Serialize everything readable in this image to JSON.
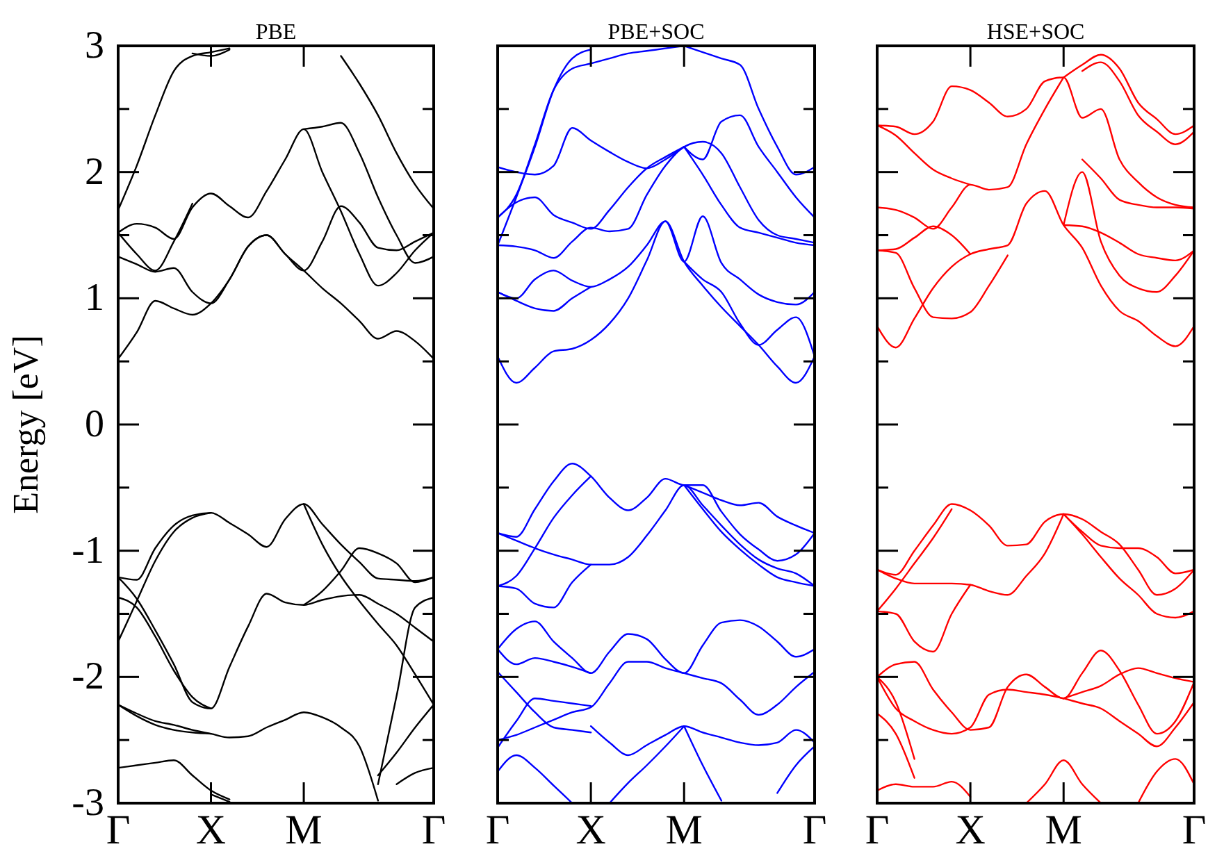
{
  "chart_data": [
    {
      "type": "line",
      "title": "PBE",
      "ylabel": "Energy [eV]",
      "ylim": [
        -3,
        3
      ],
      "categories": [
        "Γ",
        null,
        null,
        null,
        null,
        "X",
        null,
        null,
        null,
        null,
        "M",
        null,
        null,
        null,
        null,
        null,
        null,
        "Γ"
      ],
      "yticks": [
        -3,
        {
          "value": -2.5,
          "label": null
        },
        -2,
        {
          "value": -1.5,
          "label": null
        },
        -1,
        {
          "value": -0.5,
          "label": null
        },
        0,
        {
          "value": 0.5,
          "label": null
        },
        1,
        {
          "value": 1.5,
          "label": null
        },
        2,
        {
          "value": 2.5,
          "label": null
        },
        3
      ],
      "series": [
        {
          "color": "#000000",
          "values": [
            0.52,
            0.73,
            0.98,
            0.92,
            0.87,
            0.96,
            1.15,
            1.41,
            1.5,
            1.35,
            1.22,
            1.08,
            0.96,
            0.82,
            0.68,
            0.74,
            0.66,
            0.52
          ]
        },
        {
          "color": "#000000",
          "values": [
            1.33,
            1.27,
            1.21,
            1.24,
            1.05,
            0.96,
            1.15,
            1.41,
            1.5,
            1.35,
            1.22,
            1.45,
            1.73,
            1.6,
            1.4,
            1.38,
            1.45,
            1.52
          ]
        },
        {
          "color": "#000000",
          "values": [
            1.52,
            1.59,
            1.56,
            1.47,
            1.72,
            1.83,
            1.73,
            1.64,
            1.85,
            2.1,
            2.34,
            2.0,
            1.69,
            1.35,
            1.1,
            1.2,
            1.38,
            1.52
          ]
        },
        {
          "color": "#000000",
          "values": [
            null,
            null,
            null,
            null,
            null,
            null,
            null,
            null,
            null,
            null,
            2.34,
            2.36,
            2.39,
            2.15,
            1.8,
            1.5,
            1.28,
            1.33
          ]
        },
        {
          "color": "#000000",
          "values": [
            1.52,
            1.35,
            1.22,
            1.45,
            1.75,
            null,
            null,
            null,
            null,
            null,
            null,
            null,
            null,
            null,
            null,
            null,
            null,
            null
          ]
        },
        {
          "color": "#000000",
          "values": [
            1.7,
            2.05,
            2.45,
            2.8,
            2.92,
            2.95,
            2.98,
            null,
            null,
            null,
            null,
            null,
            null,
            null,
            null,
            null,
            null,
            null
          ]
        },
        {
          "color": "#000000",
          "values": [
            null,
            null,
            null,
            null,
            2.94,
            2.92,
            2.97,
            null,
            null,
            null,
            null,
            null,
            null,
            null,
            null,
            null,
            null,
            null
          ]
        },
        {
          "color": "#000000",
          "values": [
            null,
            null,
            null,
            null,
            null,
            null,
            null,
            null,
            null,
            null,
            null,
            null,
            2.92,
            2.7,
            2.45,
            2.15,
            1.9,
            1.71
          ]
        },
        {
          "color": "#000000",
          "values": [
            -1.21,
            -1.23,
            -0.98,
            -0.8,
            -0.72,
            -0.7,
            -0.78,
            -0.87,
            -0.97,
            -0.75,
            -0.63,
            -0.79,
            -0.95,
            -1.09,
            -1.22,
            -1.23,
            -1.24,
            -1.21
          ]
        },
        {
          "color": "#000000",
          "values": [
            -1.21,
            -1.38,
            -1.63,
            -1.9,
            -2.2,
            -2.25,
            -1.92,
            -1.6,
            -1.34,
            -1.41,
            -1.43,
            -1.39,
            -1.36,
            -1.35,
            -1.42,
            -1.5,
            -1.61,
            -1.72
          ]
        },
        {
          "color": "#000000",
          "values": [
            -1.37,
            -1.45,
            -1.68,
            -1.95,
            -2.16,
            -2.25,
            null,
            null,
            null,
            null,
            null,
            null,
            null,
            null,
            null,
            null,
            null,
            null
          ]
        },
        {
          "color": "#000000",
          "values": [
            -1.72,
            -1.4,
            -1.08,
            -0.85,
            -0.74,
            -0.7,
            null,
            null,
            null,
            null,
            null,
            null,
            null,
            null,
            null,
            null,
            null,
            null
          ]
        },
        {
          "color": "#000000",
          "values": [
            null,
            null,
            null,
            null,
            null,
            null,
            null,
            null,
            null,
            null,
            -0.63,
            -0.95,
            -1.2,
            -1.4,
            -1.58,
            -1.75,
            -1.98,
            -2.22
          ]
        },
        {
          "color": "#000000",
          "values": [
            null,
            null,
            null,
            null,
            null,
            null,
            null,
            null,
            null,
            null,
            -1.43,
            -1.32,
            -1.16,
            -0.98,
            -1.02,
            -1.1,
            -1.25,
            -1.21
          ]
        },
        {
          "color": "#000000",
          "values": [
            null,
            null,
            null,
            null,
            null,
            null,
            null,
            null,
            null,
            null,
            null,
            null,
            null,
            null,
            -2.85,
            -2.15,
            -1.45,
            -1.37
          ]
        },
        {
          "color": "#000000",
          "values": [
            -2.22,
            -2.29,
            -2.35,
            -2.38,
            -2.42,
            -2.45,
            -2.48,
            -2.47,
            -2.4,
            -2.34,
            -2.28,
            -2.32,
            -2.4,
            -2.55,
            -2.98,
            null,
            null,
            null
          ]
        },
        {
          "color": "#000000",
          "values": [
            null,
            null,
            null,
            null,
            null,
            null,
            null,
            null,
            null,
            null,
            null,
            null,
            null,
            null,
            -2.78,
            -2.6,
            -2.4,
            -2.22
          ]
        },
        {
          "color": "#000000",
          "values": [
            -2.22,
            -2.31,
            -2.38,
            -2.42,
            -2.44,
            -2.45,
            null,
            null,
            null,
            null,
            null,
            null,
            null,
            null,
            null,
            null,
            null,
            null
          ]
        },
        {
          "color": "#000000",
          "values": [
            -2.72,
            -2.7,
            -2.68,
            -2.66,
            -2.78,
            -2.9,
            -2.97,
            null,
            null,
            null,
            null,
            null,
            null,
            null,
            null,
            null,
            null,
            null
          ]
        },
        {
          "color": "#000000",
          "values": [
            null,
            null,
            null,
            null,
            null,
            -2.93,
            -2.99,
            null,
            null,
            null,
            null,
            null,
            null,
            null,
            null,
            null,
            null,
            null
          ]
        },
        {
          "color": "#000000",
          "values": [
            null,
            null,
            null,
            null,
            null,
            null,
            null,
            null,
            null,
            null,
            null,
            null,
            null,
            null,
            null,
            -2.85,
            -2.76,
            -2.72
          ]
        }
      ]
    },
    {
      "type": "line",
      "title": "PBE+SOC",
      "ylim": [
        -3,
        3
      ],
      "tick_labels": "x",
      "categories": [
        "Γ",
        null,
        null,
        null,
        null,
        "X",
        null,
        null,
        null,
        null,
        "M",
        null,
        null,
        null,
        null,
        null,
        null,
        "Γ"
      ],
      "yticks": [
        -3,
        {
          "value": -2.5,
          "label": null
        },
        -2,
        {
          "value": -1.5,
          "label": null
        },
        -1,
        {
          "value": -0.5,
          "label": null
        },
        0,
        {
          "value": 0.5,
          "label": null
        },
        1,
        {
          "value": 1.5,
          "label": null
        },
        2,
        {
          "value": 2.5,
          "label": null
        },
        3
      ],
      "series": [
        {
          "color": "#0000ff",
          "values": [
            0.54,
            0.33,
            0.45,
            0.58,
            0.6,
            0.67,
            0.8,
            1.0,
            1.3,
            1.61,
            1.29,
            1.1,
            0.93,
            0.78,
            0.63,
            0.46,
            0.33,
            0.54
          ]
        },
        {
          "color": "#0000ff",
          "values": [
            1.05,
            1.0,
            1.15,
            1.22,
            1.14,
            1.09,
            1.15,
            1.25,
            1.42,
            1.61,
            1.29,
            1.65,
            1.28,
            1.15,
            1.03,
            0.97,
            0.95,
            1.05
          ]
        },
        {
          "color": "#0000ff",
          "values": [
            1.05,
            0.98,
            0.92,
            0.9,
            1.0,
            1.09,
            null,
            null,
            null,
            null,
            null,
            null,
            null,
            null,
            null,
            null,
            null,
            null
          ]
        },
        {
          "color": "#0000ff",
          "values": [
            1.42,
            1.41,
            1.38,
            1.32,
            1.45,
            1.56,
            1.53,
            1.55,
            1.82,
            2.05,
            2.2,
            2.24,
            2.15,
            1.88,
            1.62,
            1.5,
            1.47,
            1.44
          ]
        },
        {
          "color": "#0000ff",
          "values": [
            1.64,
            1.76,
            1.8,
            1.66,
            1.6,
            1.55,
            1.7,
            1.88,
            2.03,
            2.12,
            2.2,
            null,
            null,
            null,
            null,
            null,
            null,
            null
          ]
        },
        {
          "color": "#0000ff",
          "values": [
            2.04,
            2.0,
            1.98,
            2.05,
            2.35,
            2.25,
            2.16,
            2.08,
            2.03,
            2.1,
            2.2,
            null,
            null,
            null,
            null,
            null,
            null,
            null
          ]
        },
        {
          "color": "#0000ff",
          "values": [
            1.64,
            1.82,
            2.22,
            2.65,
            2.82,
            2.86,
            2.9,
            2.94,
            2.96,
            2.98,
            3.0,
            null,
            null,
            null,
            null,
            null,
            null,
            null
          ]
        },
        {
          "color": "#0000ff",
          "values": [
            1.42,
            1.8,
            2.2,
            2.65,
            2.9,
            2.97,
            null,
            null,
            null,
            null,
            null,
            null,
            null,
            null,
            null,
            null,
            null,
            null
          ]
        },
        {
          "color": "#0000ff",
          "values": [
            null,
            null,
            null,
            null,
            null,
            null,
            null,
            null,
            null,
            null,
            2.2,
            2.1,
            2.4,
            2.45,
            2.2,
            2.0,
            1.8,
            1.64
          ]
        },
        {
          "color": "#0000ff",
          "values": [
            null,
            null,
            null,
            null,
            null,
            null,
            null,
            null,
            null,
            null,
            2.2,
            1.98,
            1.74,
            1.56,
            1.52,
            1.48,
            1.44,
            1.42
          ]
        },
        {
          "color": "#0000ff",
          "values": [
            null,
            null,
            null,
            null,
            null,
            null,
            null,
            null,
            null,
            null,
            3.0,
            2.95,
            2.9,
            2.85,
            2.5,
            2.2,
            1.98,
            2.04
          ]
        },
        {
          "color": "#0000ff",
          "values": [
            null,
            null,
            null,
            null,
            null,
            null,
            null,
            null,
            null,
            null,
            1.29,
            1.15,
            1.05,
            0.8,
            0.63,
            0.75,
            0.85,
            0.54
          ]
        },
        {
          "color": "#0000ff",
          "values": [
            -0.86,
            -0.89,
            -0.67,
            -0.45,
            -0.31,
            -0.41,
            -0.58,
            -0.68,
            -0.58,
            -0.43,
            -0.48,
            -0.48,
            -0.69,
            -0.87,
            -0.99,
            -1.08,
            -1.03,
            -0.86
          ]
        },
        {
          "color": "#0000ff",
          "values": [
            -1.28,
            -1.2,
            -0.98,
            -0.74,
            -0.56,
            -0.41,
            null,
            null,
            null,
            null,
            null,
            null,
            null,
            null,
            null,
            null,
            null,
            null
          ]
        },
        {
          "color": "#0000ff",
          "values": [
            -0.86,
            -0.92,
            -0.98,
            -1.03,
            -1.07,
            -1.11,
            -1.11,
            -1.05,
            -0.88,
            -0.68,
            -0.48,
            -0.64,
            -0.8,
            -0.95,
            -1.07,
            -1.14,
            -1.18,
            -1.28
          ]
        },
        {
          "color": "#0000ff",
          "values": [
            -1.28,
            -1.3,
            -1.42,
            -1.45,
            -1.25,
            -1.11,
            null,
            null,
            null,
            null,
            null,
            null,
            null,
            null,
            null,
            null,
            null,
            null
          ]
        },
        {
          "color": "#0000ff",
          "values": [
            null,
            null,
            null,
            null,
            null,
            null,
            null,
            null,
            null,
            null,
            -0.48,
            -0.54,
            -0.6,
            -0.64,
            -0.62,
            -0.73,
            -0.8,
            -0.86
          ]
        },
        {
          "color": "#0000ff",
          "values": [
            null,
            null,
            null,
            null,
            null,
            null,
            null,
            null,
            null,
            null,
            -0.48,
            -0.67,
            -0.85,
            -0.99,
            -1.11,
            -1.21,
            -1.25,
            -1.28
          ]
        },
        {
          "color": "#0000ff",
          "values": [
            -1.78,
            -1.62,
            -1.56,
            -1.72,
            -1.85,
            -1.97,
            -1.8,
            -1.66,
            -1.7,
            -1.86,
            -1.97,
            -1.75,
            -1.57,
            -1.55,
            -1.6,
            -1.72,
            -1.84,
            -1.78
          ]
        },
        {
          "color": "#0000ff",
          "values": [
            -1.78,
            -1.9,
            -1.85,
            -1.88,
            -1.92,
            -1.97,
            null,
            null,
            null,
            null,
            null,
            null,
            null,
            null,
            null,
            null,
            null,
            null
          ]
        },
        {
          "color": "#0000ff",
          "values": [
            -2.56,
            -2.35,
            -2.17,
            -2.19,
            -2.21,
            -2.23,
            null,
            null,
            null,
            null,
            null,
            null,
            null,
            null,
            null,
            null,
            null,
            null
          ]
        },
        {
          "color": "#0000ff",
          "values": [
            -2.5,
            -2.46,
            -2.4,
            -2.34,
            -2.28,
            -2.24,
            -2.05,
            -1.88,
            -1.88,
            -1.93,
            -1.97,
            null,
            null,
            null,
            null,
            null,
            null,
            null
          ]
        },
        {
          "color": "#0000ff",
          "values": [
            null,
            null,
            null,
            null,
            null,
            -2.39,
            -2.52,
            -2.62,
            -2.54,
            -2.46,
            -2.39,
            -2.44,
            -2.48,
            -2.52,
            -2.54,
            -2.52,
            -2.42,
            -2.52
          ]
        },
        {
          "color": "#0000ff",
          "values": [
            null,
            null,
            null,
            null,
            null,
            null,
            null,
            null,
            null,
            null,
            -2.39,
            -2.7,
            -2.98,
            null,
            null,
            null,
            null,
            null
          ]
        },
        {
          "color": "#0000ff",
          "values": [
            null,
            null,
            null,
            null,
            null,
            null,
            -3.0,
            -2.84,
            -2.7,
            -2.55,
            -2.39,
            null,
            null,
            null,
            null,
            null,
            null,
            null
          ]
        },
        {
          "color": "#0000ff",
          "values": [
            -1.96,
            -2.12,
            -2.28,
            -2.4,
            -2.42,
            -2.44,
            null,
            null,
            null,
            null,
            null,
            null,
            null,
            null,
            null,
            null,
            null,
            null
          ]
        },
        {
          "color": "#0000ff",
          "values": [
            -2.75,
            -2.62,
            -2.72,
            -2.86,
            -3.0,
            null,
            null,
            null,
            null,
            null,
            null,
            null,
            null,
            null,
            null,
            null,
            null,
            null
          ]
        },
        {
          "color": "#0000ff",
          "values": [
            null,
            null,
            null,
            null,
            null,
            null,
            null,
            null,
            null,
            null,
            -1.97,
            -2.01,
            -2.05,
            -2.18,
            -2.3,
            -2.22,
            -2.08,
            -1.96
          ]
        },
        {
          "color": "#0000ff",
          "values": [
            null,
            null,
            null,
            null,
            null,
            null,
            null,
            null,
            null,
            null,
            null,
            null,
            null,
            null,
            null,
            -2.92,
            -2.7,
            -2.55
          ]
        }
      ]
    },
    {
      "type": "line",
      "title": "HSE+SOC",
      "ylim": [
        -3,
        3
      ],
      "tick_labels": "x",
      "categories": [
        "Γ",
        null,
        null,
        null,
        null,
        "X",
        null,
        null,
        null,
        null,
        "M",
        null,
        null,
        null,
        null,
        null,
        null,
        "Γ"
      ],
      "yticks": [
        -3,
        {
          "value": -2.5,
          "label": null
        },
        -2,
        {
          "value": -1.5,
          "label": null
        },
        -1,
        {
          "value": -0.5,
          "label": null
        },
        0,
        {
          "value": 0.5,
          "label": null
        },
        1,
        {
          "value": 1.5,
          "label": null
        },
        2,
        {
          "value": 2.5,
          "label": null
        },
        3
      ],
      "series": [
        {
          "color": "#ff0000",
          "values": [
            0.78,
            0.61,
            0.84,
            1.08,
            1.25,
            1.35,
            1.39,
            1.42,
            1.75,
            1.85,
            1.58,
            1.4,
            1.1,
            0.9,
            0.82,
            0.7,
            0.62,
            0.78
          ]
        },
        {
          "color": "#ff0000",
          "values": [
            1.38,
            1.36,
            1.08,
            0.85,
            0.84,
            0.89,
            1.1,
            1.34,
            null,
            null,
            null,
            null,
            null,
            null,
            null,
            null,
            null,
            null
          ]
        },
        {
          "color": "#ff0000",
          "values": [
            1.72,
            1.7,
            1.64,
            1.55,
            1.72,
            1.9,
            1.86,
            1.88,
            2.22,
            2.5,
            2.75,
            null,
            null,
            null,
            null,
            null,
            null,
            null
          ]
        },
        {
          "color": "#ff0000",
          "values": [
            2.37,
            2.36,
            2.3,
            2.4,
            2.68,
            2.65,
            2.55,
            2.44,
            2.5,
            2.72,
            2.75,
            2.43,
            2.5,
            2.1,
            1.92,
            1.8,
            1.74,
            1.72
          ]
        },
        {
          "color": "#ff0000",
          "values": [
            2.37,
            2.29,
            2.15,
            2.02,
            1.95,
            1.9,
            null,
            null,
            null,
            null,
            null,
            null,
            null,
            null,
            null,
            null,
            null,
            null
          ]
        },
        {
          "color": "#ff0000",
          "values": [
            null,
            null,
            null,
            null,
            null,
            null,
            null,
            null,
            null,
            null,
            2.75,
            2.85,
            2.93,
            2.82,
            2.55,
            2.42,
            2.3,
            2.37
          ]
        },
        {
          "color": "#ff0000",
          "values": [
            null,
            null,
            null,
            null,
            null,
            null,
            null,
            null,
            null,
            null,
            null,
            2.8,
            2.87,
            2.72,
            2.45,
            2.32,
            2.22,
            2.32
          ]
        },
        {
          "color": "#ff0000",
          "values": [
            1.38,
            1.39,
            1.48,
            1.57,
            1.5,
            1.35,
            null,
            null,
            null,
            null,
            null,
            null,
            null,
            null,
            null,
            null,
            null,
            null
          ]
        },
        {
          "color": "#ff0000",
          "values": [
            null,
            null,
            null,
            null,
            null,
            null,
            null,
            null,
            null,
            null,
            1.58,
            1.57,
            1.52,
            1.44,
            1.35,
            1.32,
            1.3,
            1.38
          ]
        },
        {
          "color": "#ff0000",
          "values": [
            null,
            null,
            null,
            null,
            null,
            null,
            null,
            null,
            null,
            null,
            1.58,
            2.0,
            1.45,
            1.18,
            1.08,
            1.05,
            1.18,
            1.38
          ]
        },
        {
          "color": "#ff0000",
          "values": [
            null,
            null,
            null,
            null,
            null,
            null,
            null,
            null,
            null,
            null,
            null,
            2.1,
            1.95,
            1.78,
            1.74,
            1.72,
            1.72,
            1.71
          ]
        },
        {
          "color": "#ff0000",
          "values": [
            -1.15,
            -1.19,
            -1.0,
            -0.8,
            -0.63,
            -0.68,
            -0.8,
            -0.96,
            -0.95,
            -0.77,
            -0.71,
            -0.75,
            -0.85,
            -0.95,
            -1.15,
            -1.35,
            -1.3,
            -1.15
          ]
        },
        {
          "color": "#ff0000",
          "values": [
            -1.15,
            -1.22,
            -1.26,
            -1.26,
            -1.26,
            -1.27,
            -1.32,
            -1.35,
            -1.2,
            -1.02,
            -0.71,
            null,
            null,
            null,
            null,
            null,
            null,
            null
          ]
        },
        {
          "color": "#ff0000",
          "values": [
            -1.48,
            -1.5,
            -1.72,
            -1.8,
            -1.5,
            -1.27,
            null,
            null,
            null,
            null,
            null,
            null,
            null,
            null,
            null,
            null,
            null,
            null
          ]
        },
        {
          "color": "#ff0000",
          "values": [
            -1.48,
            -1.3,
            -1.1,
            -0.9,
            -0.67,
            null,
            null,
            null,
            null,
            null,
            null,
            null,
            null,
            null,
            null,
            null,
            null,
            null
          ]
        },
        {
          "color": "#ff0000",
          "values": [
            null,
            null,
            null,
            null,
            null,
            null,
            null,
            null,
            null,
            null,
            -0.71,
            -0.87,
            -1.05,
            -1.22,
            -1.35,
            -1.5,
            -1.53,
            -1.48
          ]
        },
        {
          "color": "#ff0000",
          "values": [
            null,
            null,
            null,
            null,
            null,
            null,
            null,
            null,
            null,
            null,
            -0.71,
            -0.85,
            -0.96,
            -0.98,
            -0.98,
            -1.05,
            -1.18,
            -1.15
          ]
        },
        {
          "color": "#ff0000",
          "values": [
            -2.0,
            -1.9,
            -1.88,
            -2.1,
            -2.28,
            -2.42,
            -2.4,
            -2.08,
            -1.98,
            -2.08,
            -2.17,
            -1.97,
            -1.79,
            -1.95,
            -2.22,
            -2.45,
            -2.35,
            -2.04
          ]
        },
        {
          "color": "#ff0000",
          "values": [
            -2.0,
            -2.25,
            -2.35,
            -2.42,
            -2.45,
            -2.4,
            -2.14,
            -2.1,
            -2.12,
            -2.14,
            -2.17,
            null,
            null,
            null,
            null,
            null,
            null,
            null
          ]
        },
        {
          "color": "#ff0000",
          "values": [
            null,
            null,
            null,
            null,
            null,
            null,
            null,
            null,
            null,
            null,
            -2.17,
            -2.12,
            -2.07,
            -1.98,
            -1.93,
            -1.97,
            -2.01,
            -2.04
          ]
        },
        {
          "color": "#ff0000",
          "values": [
            null,
            null,
            null,
            null,
            null,
            null,
            null,
            null,
            null,
            null,
            -2.17,
            -2.21,
            -2.25,
            -2.35,
            -2.45,
            -2.55,
            -2.4,
            -2.2
          ]
        },
        {
          "color": "#ff0000",
          "values": [
            null,
            null,
            null,
            null,
            null,
            null,
            null,
            null,
            -3.0,
            -2.85,
            -2.66,
            -2.85,
            -3.0,
            null,
            null,
            null,
            null,
            null
          ]
        },
        {
          "color": "#ff0000",
          "values": [
            -2.9,
            -2.85,
            -2.87,
            -2.87,
            -2.83,
            -2.95,
            null,
            null,
            null,
            null,
            null,
            null,
            null,
            null,
            null,
            null,
            null,
            null
          ]
        },
        {
          "color": "#ff0000",
          "values": [
            -2.29,
            -2.45,
            -2.8,
            null,
            null,
            null,
            null,
            null,
            null,
            null,
            null,
            null,
            null,
            null,
            null,
            null,
            null,
            null
          ]
        },
        {
          "color": "#ff0000",
          "values": [
            -2.0,
            -2.2,
            -2.65,
            null,
            null,
            null,
            null,
            null,
            null,
            null,
            null,
            null,
            null,
            null,
            null,
            null,
            null,
            null
          ]
        },
        {
          "color": "#ff0000",
          "values": [
            null,
            null,
            null,
            null,
            null,
            null,
            null,
            null,
            null,
            null,
            null,
            null,
            null,
            null,
            -3.0,
            -2.75,
            -2.65,
            -2.85
          ]
        }
      ]
    }
  ]
}
